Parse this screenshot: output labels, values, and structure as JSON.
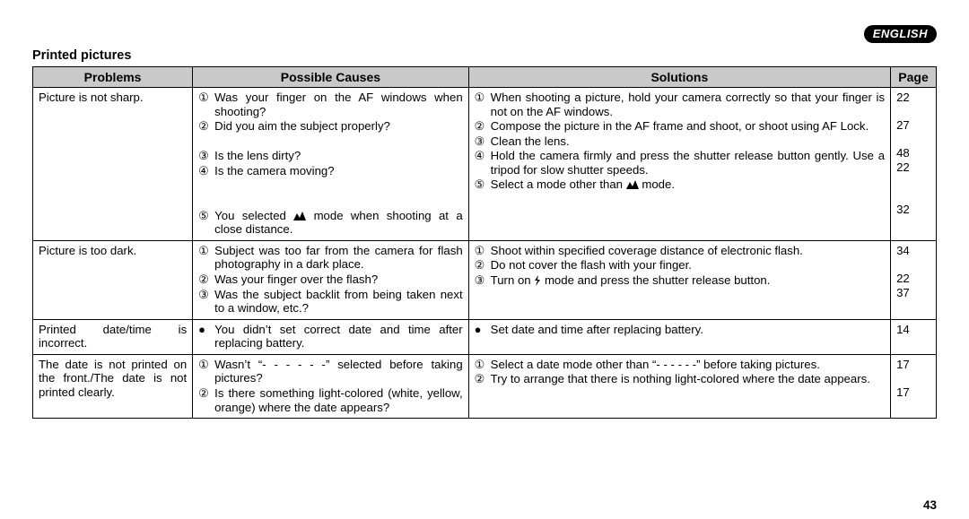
{
  "language_badge": "ENGLISH",
  "section_title": "Printed pictures",
  "headers": {
    "problems": "Problems",
    "causes": "Possible Causes",
    "solutions": "Solutions",
    "page": "Page"
  },
  "rows": [
    {
      "problem": "Picture is not sharp.",
      "causes": [
        {
          "marker": "①",
          "text": "Was your finger on the AF windows when shooting?"
        },
        {
          "marker": "②",
          "text": "Did you aim the subject properly?"
        },
        {
          "marker": "",
          "text": " "
        },
        {
          "marker": "③",
          "text": "Is the lens dirty?"
        },
        {
          "marker": "④",
          "text": "Is the camera moving?"
        },
        {
          "marker": "",
          "text": " "
        },
        {
          "marker": "",
          "text": " "
        },
        {
          "marker": "⑤",
          "text_html": "You selected <span class=\"mountain\"><svg width=\"14\" height=\"10\" viewBox=\"0 0 14 10\"><path d=\"M0 10 L4 2 L7 7 L10 0 L14 10 Z\" fill=\"#000\"/></svg></span> mode when shooting at a close distance."
        }
      ],
      "solutions": [
        {
          "marker": "①",
          "text": "When shooting a picture, hold your camera correctly so that your finger is not on the AF windows."
        },
        {
          "marker": "②",
          "text": "Compose the picture in the AF frame and shoot, or shoot using AF Lock."
        },
        {
          "marker": "③",
          "text": "Clean the lens."
        },
        {
          "marker": "④",
          "text": "Hold the camera firmly and press the shutter release button gently. Use a tripod for slow shutter speeds."
        },
        {
          "marker": "⑤",
          "text_html": "Select a mode other than <span class=\"mountain\"><svg width=\"14\" height=\"10\" viewBox=\"0 0 14 10\"><path d=\"M0 10 L4 2 L7 7 L10 0 L14 10 Z\" fill=\"#000\"/></svg></span> mode."
        }
      ],
      "pages": [
        "22",
        "",
        "27",
        "",
        "48",
        "22",
        "",
        "",
        "32"
      ]
    },
    {
      "problem": "Picture is too dark.",
      "causes": [
        {
          "marker": "①",
          "text": "Subject was too far from the camera for flash photography in a dark place."
        },
        {
          "marker": "②",
          "text": "Was your finger over the flash?"
        },
        {
          "marker": "③",
          "text": "Was the subject backlit from being taken next to a window, etc.?"
        }
      ],
      "solutions": [
        {
          "marker": "①",
          "text": "Shoot within specified coverage distance of electronic flash."
        },
        {
          "marker": "②",
          "text": "Do not cover the flash with your finger."
        },
        {
          "marker": "③",
          "text_html": "Turn on <span class=\"bolt\"><svg width=\"8\" height=\"12\" viewBox=\"0 0 8 12\"><path d=\"M5 0 L1 6 L4 6 L2 12 L7 5 L4 5 Z\" fill=\"#000\"/></svg></span> mode and press the shutter release button."
        }
      ],
      "pages": [
        "34",
        "",
        "22",
        "37"
      ]
    },
    {
      "problem": "Printed date/time is incorrect.",
      "causes": [
        {
          "marker": "●",
          "text": "You didn’t set correct date and time after replacing battery."
        }
      ],
      "solutions": [
        {
          "marker": "●",
          "text": "Set date and time after replacing battery."
        }
      ],
      "pages": [
        "14"
      ]
    },
    {
      "problem": "The date is not printed on the front./The date is not printed clearly.",
      "causes": [
        {
          "marker": "①",
          "text": "Wasn’t “- - - - - -” selected before taking pictures?"
        },
        {
          "marker": "②",
          "text": "Is there something light-colored (white, yellow, orange) where the date appears?"
        }
      ],
      "solutions": [
        {
          "marker": "①",
          "text": "Select a date mode other than “- - - - - -” before taking pictures."
        },
        {
          "marker": "②",
          "text": "Try to arrange that there is nothing light-colored where the date appears."
        }
      ],
      "pages": [
        "17",
        "",
        "17"
      ]
    }
  ],
  "footer_page": "43"
}
